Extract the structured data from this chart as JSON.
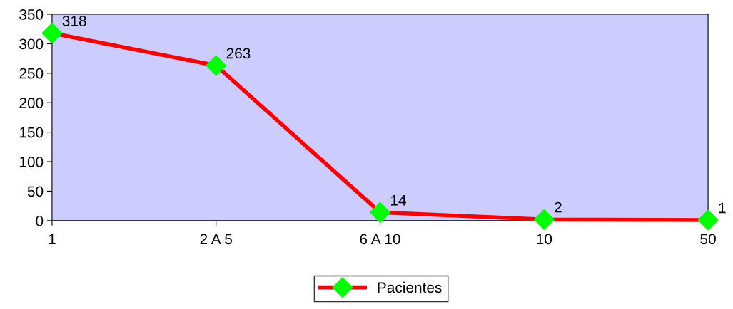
{
  "chart_data": {
    "type": "line",
    "categories": [
      "1",
      "2 A 5",
      "6 A 10",
      "10",
      "50"
    ],
    "series": [
      {
        "name": "Pacientes",
        "color": "#ff0000",
        "values": [
          318,
          263,
          14,
          2,
          1
        ]
      }
    ],
    "ylim": [
      0,
      350
    ],
    "yticks": [
      0,
      50,
      100,
      150,
      200,
      250,
      300,
      350
    ],
    "data_labels": true,
    "grid": false,
    "legend": "bottom",
    "marker": "diamond",
    "line_style": "solid"
  }
}
